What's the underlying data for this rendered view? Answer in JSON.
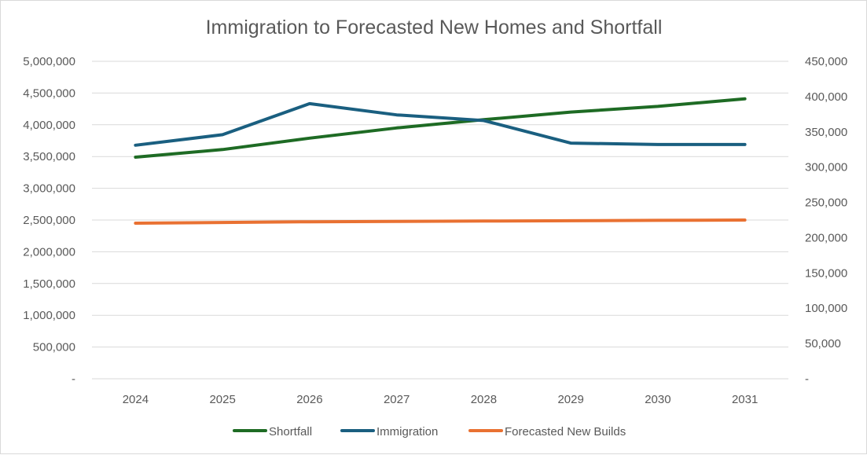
{
  "chart_data": {
    "type": "line",
    "title": "Immigration to Forecasted New Homes and Shortfall",
    "xlabel": "",
    "ylabel": "",
    "categories": [
      "2024",
      "2025",
      "2026",
      "2027",
      "2028",
      "2029",
      "2030",
      "2031"
    ],
    "y_left": {
      "range": [
        0,
        5000000
      ],
      "ticks": [
        "-",
        "500,000",
        "1,000,000",
        "1,500,000",
        "2,000,000",
        "2,500,000",
        "3,000,000",
        "3,500,000",
        "4,000,000",
        "4,500,000",
        "5,000,000"
      ]
    },
    "y_right": {
      "range": [
        0,
        450000
      ],
      "ticks": [
        "-",
        "50,000",
        "100,000",
        "150,000",
        "200,000",
        "250,000",
        "300,000",
        "350,000",
        "400,000",
        "450,000"
      ]
    },
    "grid": true,
    "legend_position": "bottom",
    "series": [
      {
        "name": "Shortfall",
        "axis": "left",
        "color": "#1e6b24",
        "values": [
          3490000,
          3610000,
          3790000,
          3950000,
          4080000,
          4200000,
          4290000,
          4410000
        ]
      },
      {
        "name": "Immigration",
        "axis": "right",
        "color": "#1a5f80",
        "values": [
          331000,
          346000,
          390000,
          374000,
          366000,
          334000,
          332000,
          332000
        ]
      },
      {
        "name": "Forecasted New Builds",
        "axis": "right",
        "color": "#e97132",
        "values": [
          220500,
          221500,
          222500,
          223000,
          223500,
          224000,
          224500,
          225000
        ]
      }
    ]
  }
}
